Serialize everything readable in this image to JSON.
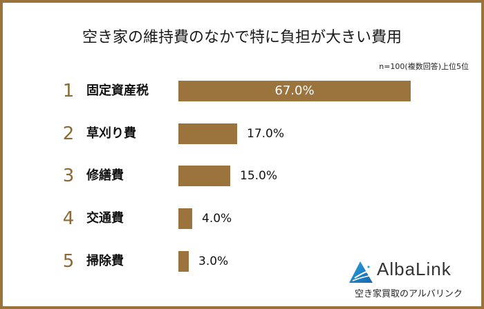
{
  "chart_data": {
    "type": "bar",
    "orientation": "horizontal",
    "title": "空き家の維持費のなかで特に負担が大きい費用",
    "note": "n=100(複数回答)上位5位",
    "ranks": [
      "1",
      "2",
      "3",
      "4",
      "5"
    ],
    "categories": [
      "固定資産税",
      "草刈り費",
      "修繕費",
      "交通費",
      "掃除費"
    ],
    "values": [
      67.0,
      17.0,
      15.0,
      4.0,
      3.0
    ],
    "value_labels": [
      "67.0%",
      "17.0%",
      "15.0%",
      "4.0%",
      "3.0%"
    ],
    "unit": "%",
    "xlabel": "",
    "ylabel": "",
    "grid": false,
    "legend": null,
    "bar_color": "#9b733c"
  },
  "frame": {
    "border_color": "#9a733b"
  },
  "logo": {
    "name": "AlbaLink",
    "tagline": "空き家買取のアルバリンク"
  }
}
